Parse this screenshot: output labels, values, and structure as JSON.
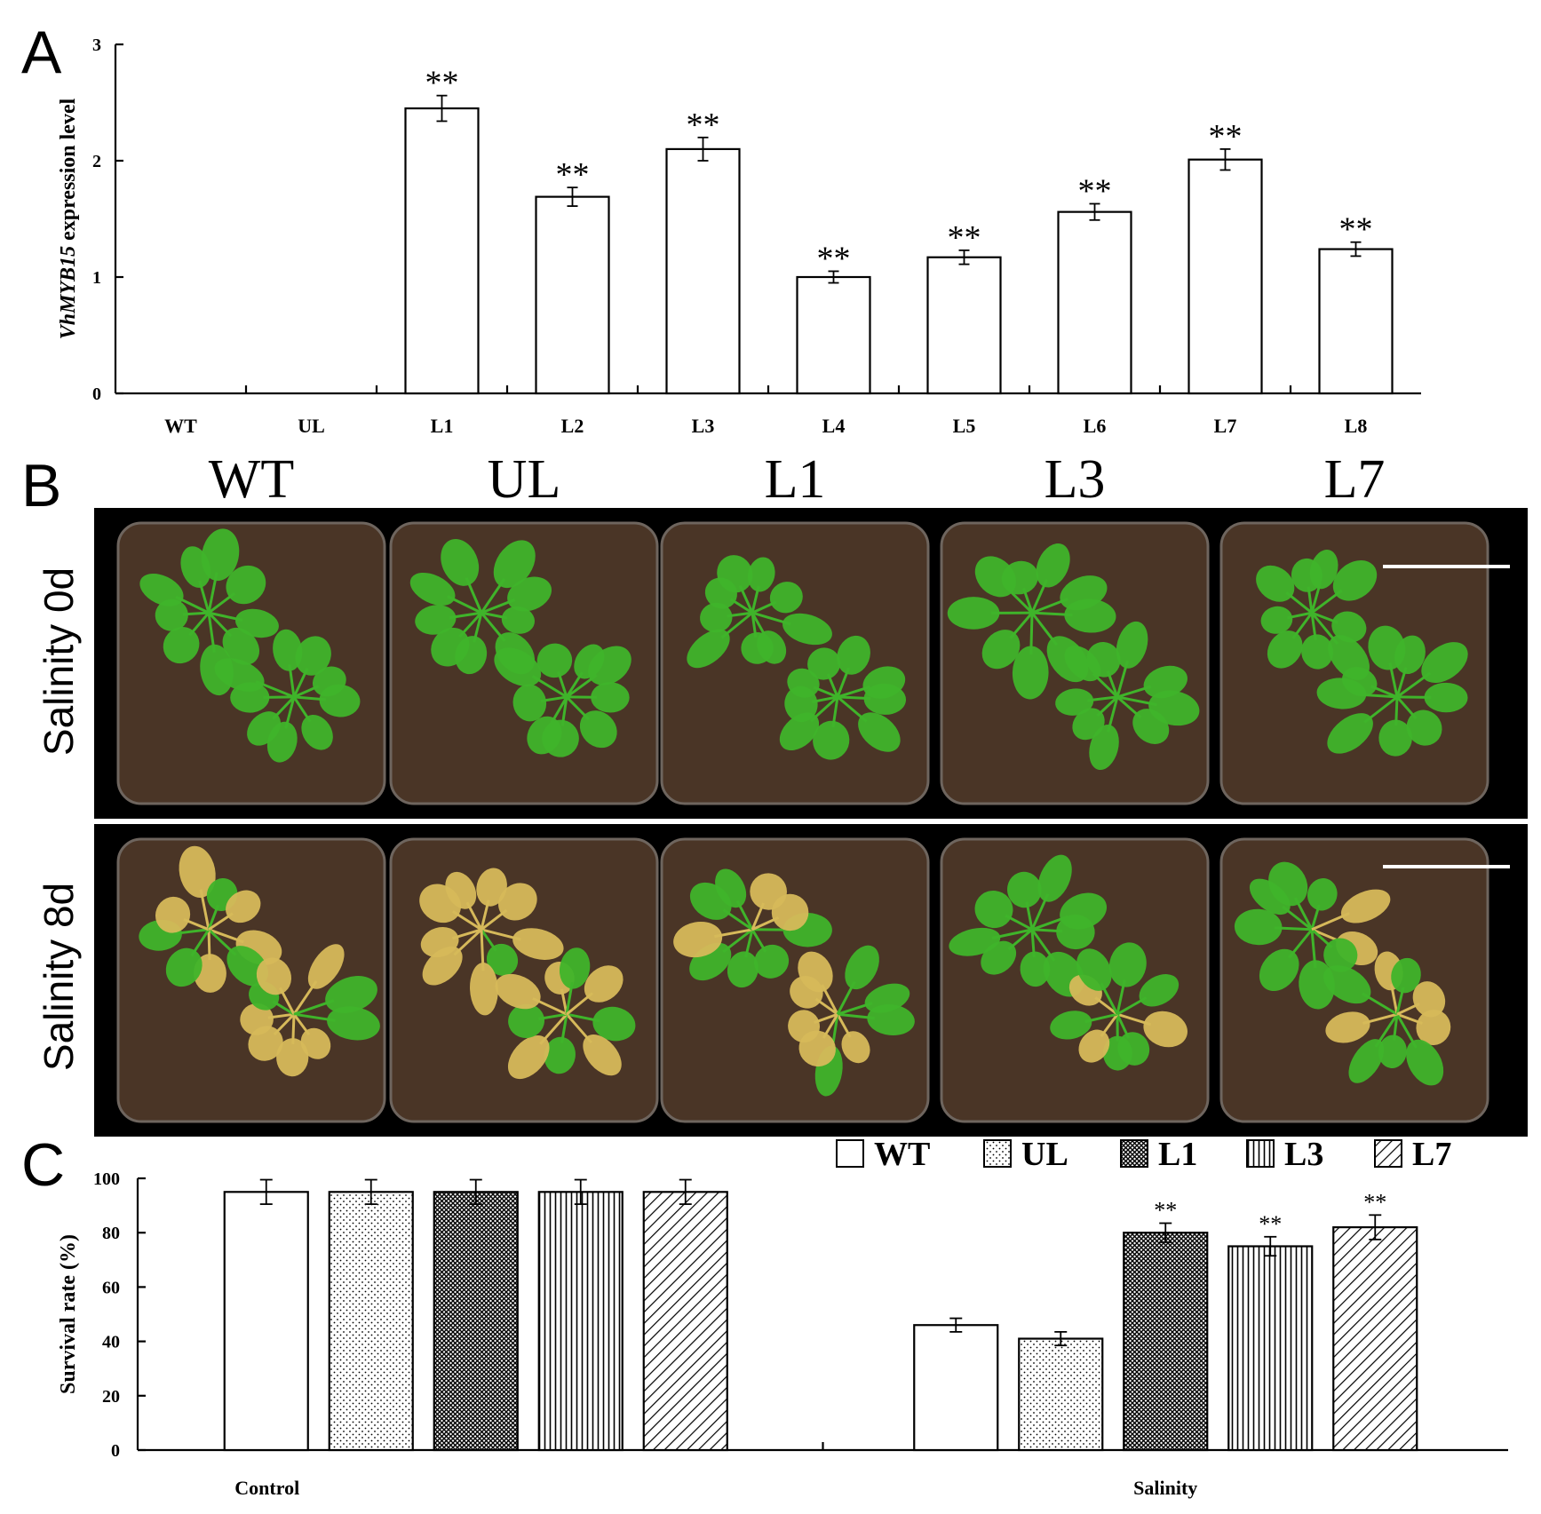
{
  "panel_letters": {
    "a": "A",
    "b": "B",
    "c": "C"
  },
  "photo_panel": {
    "column_labels": [
      "WT",
      "UL",
      "L1",
      "L3",
      "L7"
    ],
    "row_labels": [
      "Salinity 0d",
      "Salinity 8d"
    ]
  },
  "colors": {
    "bar_fill": "#ffffff",
    "bar_stroke": "#000000",
    "photo_background": "#000000",
    "soil": "#4a3526",
    "leaf_healthy": "#3fb42a",
    "leaf_stressed": "#d6b95a"
  },
  "chart_data": [
    {
      "type": "bar",
      "panel": "A",
      "ylabel": "VhMYB15 expression level",
      "ylabel_italic_part": "VhMYB15",
      "ylabel_rest": " expression level",
      "categories": [
        "WT",
        "UL",
        "L1",
        "L2",
        "L3",
        "L4",
        "L5",
        "L6",
        "L7",
        "L8"
      ],
      "values": [
        0,
        0,
        2.45,
        1.69,
        2.1,
        1.0,
        1.17,
        1.56,
        2.01,
        1.24
      ],
      "errors": [
        0,
        0,
        0.11,
        0.08,
        0.1,
        0.05,
        0.06,
        0.07,
        0.09,
        0.06
      ],
      "significance": [
        "",
        "",
        "**",
        "**",
        "**",
        "**",
        "**",
        "**",
        "**",
        "**"
      ],
      "ylim": [
        0,
        3
      ],
      "yticks": [
        "0",
        "1",
        "2",
        "3"
      ],
      "grid": false
    },
    {
      "type": "bar",
      "panel": "C",
      "ylabel": "Survival rate (%)",
      "groups": [
        "Control",
        "Salinity"
      ],
      "series": [
        {
          "name": "WT",
          "pattern": "white",
          "values": [
            95,
            46
          ],
          "errors": [
            4.5,
            2.5
          ],
          "significance": [
            "",
            ""
          ]
        },
        {
          "name": "UL",
          "pattern": "dots",
          "values": [
            95,
            41
          ],
          "errors": [
            4.5,
            2.5
          ],
          "significance": [
            "",
            ""
          ]
        },
        {
          "name": "L1",
          "pattern": "crosshatch",
          "values": [
            95,
            80
          ],
          "errors": [
            4.5,
            3.5
          ],
          "significance": [
            "",
            "**"
          ]
        },
        {
          "name": "L3",
          "pattern": "vertical",
          "values": [
            95,
            75
          ],
          "errors": [
            4.5,
            3.5
          ],
          "significance": [
            "",
            "**"
          ]
        },
        {
          "name": "L7",
          "pattern": "diagonal",
          "values": [
            95,
            82
          ],
          "errors": [
            4.5,
            4.5
          ],
          "significance": [
            "",
            "**"
          ]
        }
      ],
      "ylim": [
        0,
        100
      ],
      "yticks": [
        "0",
        "20",
        "40",
        "60",
        "80",
        "100"
      ],
      "legend_position": "top-right",
      "grid": false
    }
  ]
}
